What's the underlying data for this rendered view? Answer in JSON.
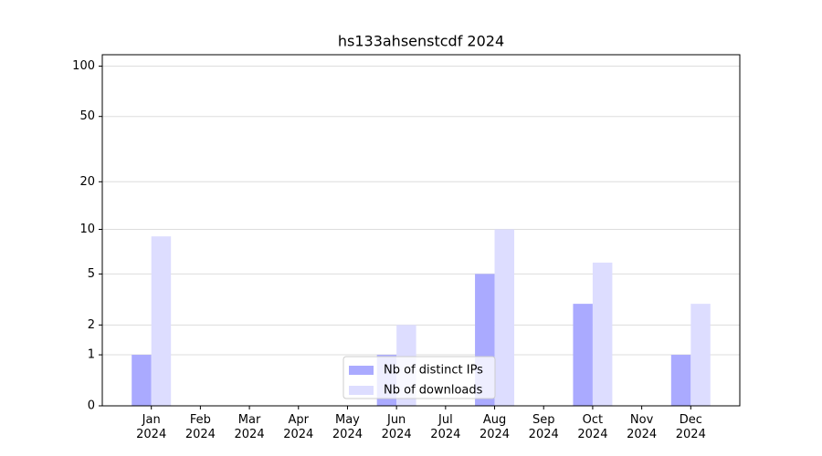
{
  "chart_data": {
    "type": "bar",
    "title": "hs133ahsenstcdf 2024",
    "categories": [
      "Jan 2024",
      "Feb 2024",
      "Mar 2024",
      "Apr 2024",
      "May 2024",
      "Jun 2024",
      "Jul 2024",
      "Aug 2024",
      "Sep 2024",
      "Oct 2024",
      "Nov 2024",
      "Dec 2024"
    ],
    "series": [
      {
        "name": "Nb of distinct IPs",
        "color": "#aaaaff",
        "values": [
          1,
          0,
          0,
          0,
          0,
          1,
          0,
          5,
          0,
          3,
          0,
          1
        ]
      },
      {
        "name": "Nb of downloads",
        "color": "#ddddff",
        "values": [
          9,
          0,
          0,
          0,
          0,
          2,
          0,
          10,
          0,
          6,
          0,
          3
        ]
      }
    ],
    "yscale": "log1p",
    "ylim": [
      0,
      117
    ],
    "yticks": [
      0,
      1,
      2,
      5,
      10,
      20,
      50,
      100
    ],
    "grid": true,
    "legend": "lower center"
  }
}
